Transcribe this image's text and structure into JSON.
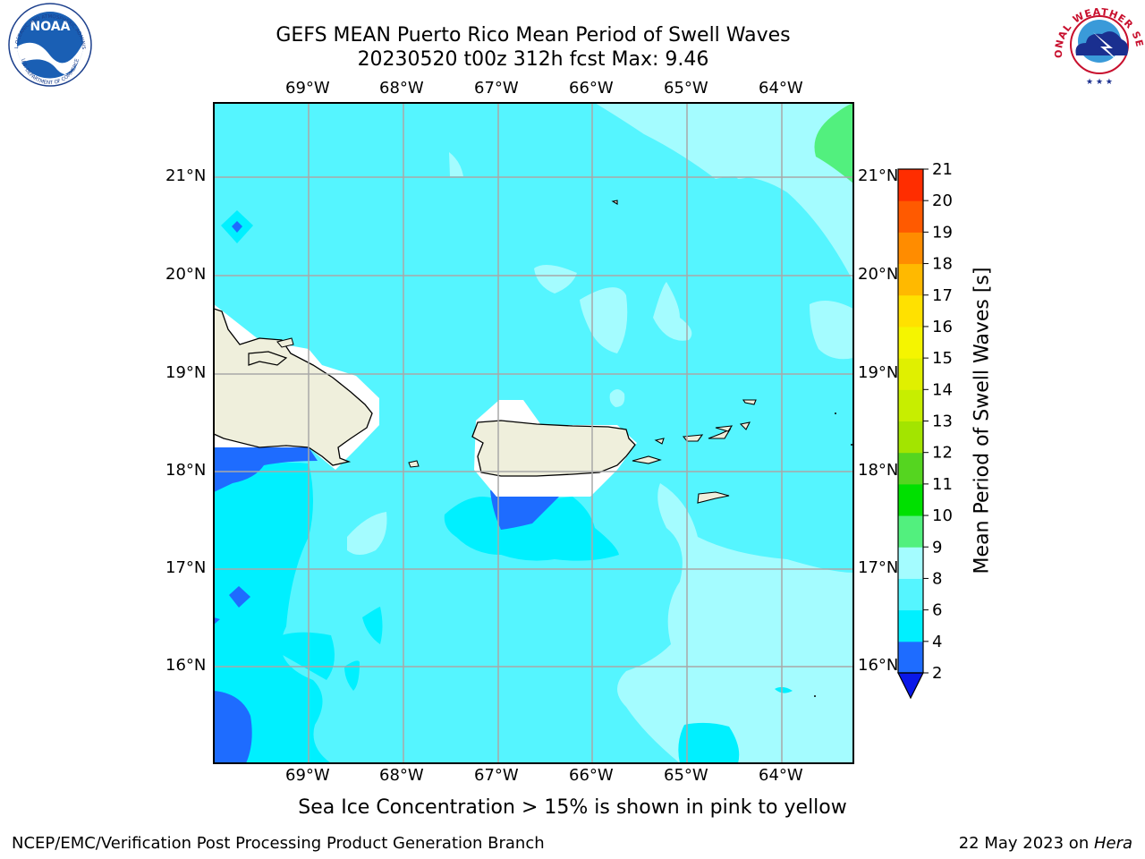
{
  "title": {
    "line1": "GEFS MEAN Puerto Rico Mean Period of Swell Waves",
    "line2": "20230520 t00z 312h fcst   Max: 9.46"
  },
  "map": {
    "lon_labels": [
      "69°W",
      "68°W",
      "67°W",
      "66°W",
      "65°W",
      "64°W"
    ],
    "lat_labels": [
      "21°N",
      "20°N",
      "19°N",
      "18°N",
      "17°N",
      "16°N"
    ]
  },
  "colorbar": {
    "label": "Mean Period of Swell Waves [s]",
    "ticks": [
      "2",
      "4",
      "6",
      "8",
      "9",
      "10",
      "11",
      "12",
      "13",
      "14",
      "15",
      "16",
      "17",
      "18",
      "19",
      "20",
      "21"
    ],
    "colors": [
      "#1e6cff",
      "#00f0ff",
      "#55f5ff",
      "#a4fcff",
      "#52f07e",
      "#00e000",
      "#55d520",
      "#a3e400",
      "#c7ee00",
      "#e0f000",
      "#f5f500",
      "#ffe100",
      "#ffb900",
      "#ff8c00",
      "#ff5a00",
      "#ff2d00"
    ],
    "under_color": "#0a18e8"
  },
  "note": "Sea Ice Concentration > 15% is shown in pink to yellow",
  "footer": {
    "left": "NCEP/EMC/Verification Post Processing Product Generation Branch",
    "right_date": "22 May 2023 on ",
    "right_host": "Hera"
  },
  "logos": {
    "noaa_text": "NOAA",
    "noaa_ring": "NATIONAL OCEANIC AND ATMOSPHERIC ADMINISTRATION",
    "noaa_ring_bottom": "U.S. DEPARTMENT OF COMMERCE",
    "nws_ring": "NATIONAL WEATHER SERVICE"
  }
}
